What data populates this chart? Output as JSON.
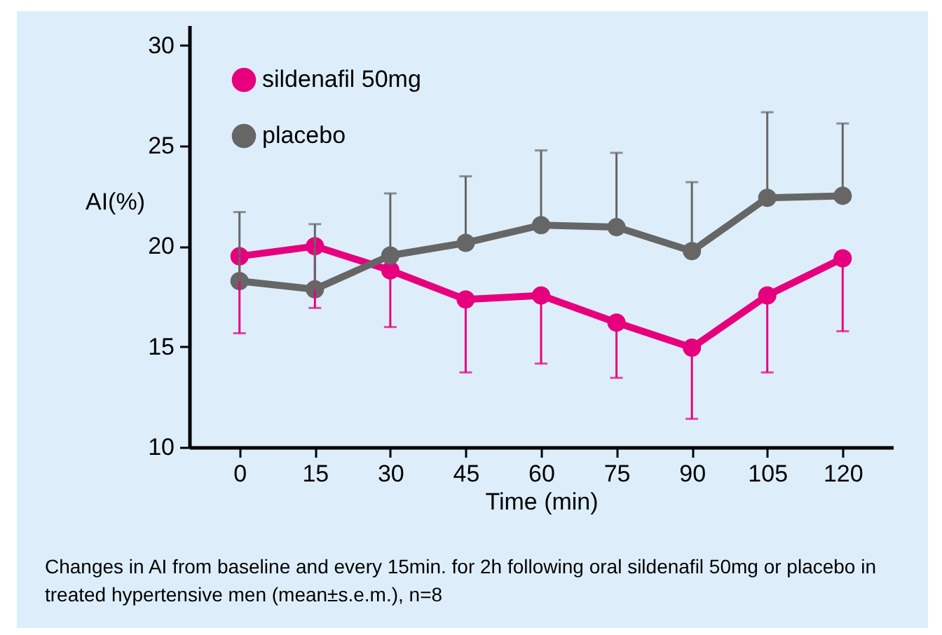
{
  "chart_data": {
    "type": "line",
    "xlabel": "Time (min)",
    "ylabel": "AI(%)",
    "x": [
      0,
      15,
      30,
      45,
      60,
      75,
      90,
      105,
      120
    ],
    "series": [
      {
        "name": "sildenafil 50mg",
        "color": "#e6007e",
        "values": [
          19.5,
          20.0,
          18.8,
          17.35,
          17.55,
          16.2,
          14.95,
          17.55,
          19.4
        ],
        "errors": [
          [
            15.67,
            19.5
          ],
          [
            16.93,
            20.0
          ],
          [
            15.98,
            18.8
          ],
          [
            13.72,
            17.35
          ],
          [
            14.16,
            17.55
          ],
          [
            13.45,
            16.2
          ],
          [
            11.41,
            14.95
          ],
          [
            13.72,
            17.55
          ],
          [
            15.77,
            19.4
          ]
        ]
      },
      {
        "name": "placebo",
        "color": "#666666",
        "values": [
          18.27,
          17.86,
          19.54,
          20.17,
          21.05,
          20.95,
          19.76,
          22.41,
          22.51
        ],
        "errors": [
          [
            18.27,
            21.7
          ],
          [
            17.86,
            21.1
          ],
          [
            19.54,
            22.63
          ],
          [
            20.17,
            23.48
          ],
          [
            21.05,
            24.77
          ],
          [
            20.95,
            24.65
          ],
          [
            19.76,
            23.19
          ],
          [
            22.41,
            26.67
          ],
          [
            22.51,
            26.11
          ]
        ]
      }
    ],
    "xlim": [
      -10,
      130
    ],
    "xticks": [
      0,
      15,
      30,
      45,
      60,
      75,
      90,
      105,
      120
    ],
    "ylim": [
      10,
      31
    ],
    "yticks": [
      10,
      15,
      20,
      25,
      30
    ],
    "grid": false,
    "legend": "top left",
    "marker": "circle",
    "line_style": "solid",
    "annotations": [
      "Changes in AI from baseline and every 15min. for 2h following oral sildenafil 50mg or placebo in treated hypertensive men (mean±s.e.m.), n=8"
    ]
  }
}
